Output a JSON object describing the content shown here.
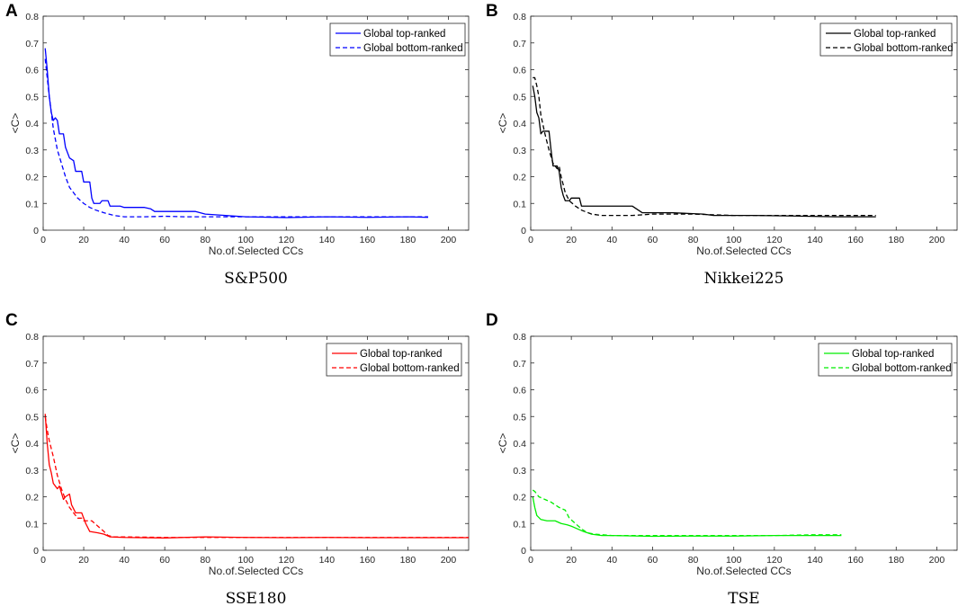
{
  "figure": {
    "panels": [
      "A",
      "B",
      "C",
      "D"
    ]
  },
  "chart_data": [
    {
      "type": "line",
      "panel_label": "A",
      "caption": "S&P500",
      "xlabel": "No.of.Selected CCs",
      "ylabel": "<C>",
      "xlim": [
        0,
        210
      ],
      "ylim": [
        0,
        0.8
      ],
      "xticks": [
        "0",
        "20",
        "40",
        "60",
        "80",
        "100",
        "120",
        "140",
        "160",
        "180",
        "200"
      ],
      "yticks": [
        "0",
        "0.1",
        "0.2",
        "0.3",
        "0.4",
        "0.5",
        "0.6",
        "0.7",
        "0.8"
      ],
      "color": "#0000ff",
      "legend_position": "top-right",
      "series": [
        {
          "name": "Global top-ranked",
          "style": "solid",
          "points": [
            [
              1,
              0.68
            ],
            [
              2,
              0.6
            ],
            [
              3,
              0.5
            ],
            [
              4,
              0.44
            ],
            [
              5,
              0.41
            ],
            [
              6,
              0.42
            ],
            [
              7,
              0.41
            ],
            [
              8,
              0.36
            ],
            [
              10,
              0.36
            ],
            [
              11,
              0.31
            ],
            [
              13,
              0.27
            ],
            [
              15,
              0.26
            ],
            [
              16,
              0.22
            ],
            [
              19,
              0.22
            ],
            [
              20,
              0.18
            ],
            [
              23,
              0.18
            ],
            [
              24,
              0.12
            ],
            [
              25,
              0.1
            ],
            [
              28,
              0.1
            ],
            [
              29,
              0.11
            ],
            [
              32,
              0.11
            ],
            [
              33,
              0.09
            ],
            [
              38,
              0.09
            ],
            [
              40,
              0.085
            ],
            [
              50,
              0.085
            ],
            [
              53,
              0.08
            ],
            [
              55,
              0.07
            ],
            [
              75,
              0.07
            ],
            [
              80,
              0.06
            ],
            [
              90,
              0.055
            ],
            [
              100,
              0.05
            ],
            [
              120,
              0.047
            ],
            [
              140,
              0.05
            ],
            [
              160,
              0.048
            ],
            [
              180,
              0.05
            ],
            [
              190,
              0.048
            ]
          ]
        },
        {
          "name": "Global bottom-ranked",
          "style": "dashed",
          "points": [
            [
              1,
              0.64
            ],
            [
              3,
              0.5
            ],
            [
              5,
              0.38
            ],
            [
              7,
              0.3
            ],
            [
              9,
              0.25
            ],
            [
              11,
              0.2
            ],
            [
              13,
              0.16
            ],
            [
              15,
              0.14
            ],
            [
              17,
              0.12
            ],
            [
              20,
              0.1
            ],
            [
              23,
              0.085
            ],
            [
              26,
              0.075
            ],
            [
              30,
              0.065
            ],
            [
              35,
              0.055
            ],
            [
              40,
              0.05
            ],
            [
              50,
              0.05
            ],
            [
              60,
              0.052
            ],
            [
              70,
              0.05
            ],
            [
              80,
              0.05
            ],
            [
              90,
              0.05
            ],
            [
              100,
              0.05
            ],
            [
              120,
              0.05
            ],
            [
              140,
              0.05
            ],
            [
              160,
              0.05
            ],
            [
              180,
              0.05
            ],
            [
              190,
              0.05
            ]
          ]
        }
      ]
    },
    {
      "type": "line",
      "panel_label": "B",
      "caption": "Nikkei225",
      "xlabel": "No.of.Selected CCs",
      "ylabel": "<C>",
      "xlim": [
        0,
        210
      ],
      "ylim": [
        0,
        0.8
      ],
      "xticks": [
        "0",
        "20",
        "40",
        "60",
        "80",
        "100",
        "120",
        "140",
        "160",
        "180",
        "200"
      ],
      "yticks": [
        "0",
        "0.1",
        "0.2",
        "0.3",
        "0.4",
        "0.5",
        "0.6",
        "0.7",
        "0.8"
      ],
      "color": "#000000",
      "legend_position": "top-right",
      "series": [
        {
          "name": "Global top-ranked",
          "style": "solid",
          "points": [
            [
              1,
              0.54
            ],
            [
              2,
              0.5
            ],
            [
              3,
              0.44
            ],
            [
              4,
              0.42
            ],
            [
              5,
              0.36
            ],
            [
              6,
              0.37
            ],
            [
              9,
              0.37
            ],
            [
              10,
              0.3
            ],
            [
              11,
              0.24
            ],
            [
              13,
              0.24
            ],
            [
              14,
              0.22
            ],
            [
              15,
              0.16
            ],
            [
              16,
              0.13
            ],
            [
              17,
              0.11
            ],
            [
              19,
              0.11
            ],
            [
              20,
              0.12
            ],
            [
              24,
              0.12
            ],
            [
              25,
              0.09
            ],
            [
              50,
              0.09
            ],
            [
              52,
              0.08
            ],
            [
              55,
              0.065
            ],
            [
              70,
              0.065
            ],
            [
              85,
              0.06
            ],
            [
              90,
              0.055
            ],
            [
              110,
              0.055
            ],
            [
              130,
              0.053
            ],
            [
              150,
              0.05
            ],
            [
              170,
              0.05
            ]
          ]
        },
        {
          "name": "Global bottom-ranked",
          "style": "dashed",
          "points": [
            [
              1,
              0.57
            ],
            [
              2,
              0.57
            ],
            [
              3,
              0.54
            ],
            [
              4,
              0.5
            ],
            [
              5,
              0.43
            ],
            [
              7,
              0.36
            ],
            [
              9,
              0.3
            ],
            [
              11,
              0.25
            ],
            [
              13,
              0.23
            ],
            [
              14,
              0.24
            ],
            [
              15,
              0.2
            ],
            [
              17,
              0.14
            ],
            [
              19,
              0.11
            ],
            [
              22,
              0.09
            ],
            [
              25,
              0.075
            ],
            [
              30,
              0.06
            ],
            [
              35,
              0.055
            ],
            [
              50,
              0.055
            ],
            [
              60,
              0.06
            ],
            [
              80,
              0.06
            ],
            [
              100,
              0.055
            ],
            [
              120,
              0.055
            ],
            [
              140,
              0.055
            ],
            [
              160,
              0.055
            ],
            [
              170,
              0.055
            ]
          ]
        }
      ]
    },
    {
      "type": "line",
      "panel_label": "C",
      "caption": "SSE180",
      "xlabel": "No.of.Selected CCs",
      "ylabel": "<C>",
      "xlim": [
        0,
        210
      ],
      "ylim": [
        0,
        0.8
      ],
      "xticks": [
        "0",
        "20",
        "40",
        "60",
        "80",
        "100",
        "120",
        "140",
        "160",
        "180",
        "200"
      ],
      "yticks": [
        "0",
        "0.1",
        "0.2",
        "0.3",
        "0.4",
        "0.5",
        "0.6",
        "0.7",
        "0.8"
      ],
      "color": "#ff0000",
      "legend_position": "top-right",
      "series": [
        {
          "name": "Global top-ranked",
          "style": "solid",
          "points": [
            [
              1,
              0.51
            ],
            [
              2,
              0.4
            ],
            [
              3,
              0.32
            ],
            [
              4,
              0.29
            ],
            [
              5,
              0.25
            ],
            [
              7,
              0.23
            ],
            [
              8,
              0.24
            ],
            [
              10,
              0.19
            ],
            [
              11,
              0.2
            ],
            [
              13,
              0.21
            ],
            [
              14,
              0.17
            ],
            [
              16,
              0.14
            ],
            [
              19,
              0.14
            ],
            [
              21,
              0.1
            ],
            [
              23,
              0.07
            ],
            [
              27,
              0.065
            ],
            [
              30,
              0.06
            ],
            [
              33,
              0.05
            ],
            [
              40,
              0.048
            ],
            [
              60,
              0.046
            ],
            [
              80,
              0.05
            ],
            [
              100,
              0.048
            ],
            [
              120,
              0.047
            ],
            [
              140,
              0.048
            ],
            [
              160,
              0.047
            ],
            [
              180,
              0.047
            ],
            [
              200,
              0.047
            ],
            [
              210,
              0.047
            ]
          ]
        },
        {
          "name": "Global bottom-ranked",
          "style": "dashed",
          "points": [
            [
              1,
              0.5
            ],
            [
              2,
              0.45
            ],
            [
              3,
              0.41
            ],
            [
              5,
              0.35
            ],
            [
              7,
              0.28
            ],
            [
              9,
              0.23
            ],
            [
              11,
              0.19
            ],
            [
              13,
              0.16
            ],
            [
              15,
              0.14
            ],
            [
              17,
              0.12
            ],
            [
              19,
              0.12
            ],
            [
              20,
              0.11
            ],
            [
              24,
              0.11
            ],
            [
              27,
              0.09
            ],
            [
              30,
              0.07
            ],
            [
              32,
              0.055
            ],
            [
              35,
              0.05
            ],
            [
              40,
              0.05
            ],
            [
              60,
              0.048
            ],
            [
              80,
              0.048
            ],
            [
              100,
              0.048
            ],
            [
              120,
              0.048
            ],
            [
              140,
              0.048
            ],
            [
              160,
              0.048
            ],
            [
              180,
              0.048
            ],
            [
              200,
              0.048
            ],
            [
              210,
              0.048
            ]
          ]
        }
      ]
    },
    {
      "type": "line",
      "panel_label": "D",
      "caption": "TSE",
      "xlabel": "No.of.Selected CCs",
      "ylabel": "<C>",
      "xlim": [
        0,
        210
      ],
      "ylim": [
        0,
        0.8
      ],
      "xticks": [
        "0",
        "20",
        "40",
        "60",
        "80",
        "100",
        "120",
        "140",
        "160",
        "180",
        "200"
      ],
      "yticks": [
        "0",
        "0.1",
        "0.2",
        "0.3",
        "0.4",
        "0.5",
        "0.6",
        "0.7",
        "0.8"
      ],
      "color": "#00ee00",
      "legend_position": "top-right",
      "series": [
        {
          "name": "Global top-ranked",
          "style": "solid",
          "points": [
            [
              1,
              0.2
            ],
            [
              2,
              0.16
            ],
            [
              3,
              0.13
            ],
            [
              5,
              0.115
            ],
            [
              8,
              0.11
            ],
            [
              12,
              0.11
            ],
            [
              15,
              0.1
            ],
            [
              18,
              0.095
            ],
            [
              20,
              0.09
            ],
            [
              23,
              0.08
            ],
            [
              26,
              0.07
            ],
            [
              30,
              0.06
            ],
            [
              35,
              0.055
            ],
            [
              40,
              0.055
            ],
            [
              60,
              0.052
            ],
            [
              80,
              0.053
            ],
            [
              100,
              0.053
            ],
            [
              120,
              0.055
            ],
            [
              140,
              0.055
            ],
            [
              153,
              0.055
            ]
          ]
        },
        {
          "name": "Global bottom-ranked",
          "style": "dashed",
          "points": [
            [
              1,
              0.225
            ],
            [
              2,
              0.22
            ],
            [
              4,
              0.2
            ],
            [
              7,
              0.19
            ],
            [
              10,
              0.18
            ],
            [
              14,
              0.16
            ],
            [
              17,
              0.15
            ],
            [
              19,
              0.12
            ],
            [
              22,
              0.1
            ],
            [
              25,
              0.08
            ],
            [
              28,
              0.065
            ],
            [
              32,
              0.06
            ],
            [
              40,
              0.055
            ],
            [
              60,
              0.055
            ],
            [
              80,
              0.055
            ],
            [
              100,
              0.055
            ],
            [
              120,
              0.055
            ],
            [
              140,
              0.058
            ],
            [
              153,
              0.058
            ]
          ]
        }
      ]
    }
  ]
}
